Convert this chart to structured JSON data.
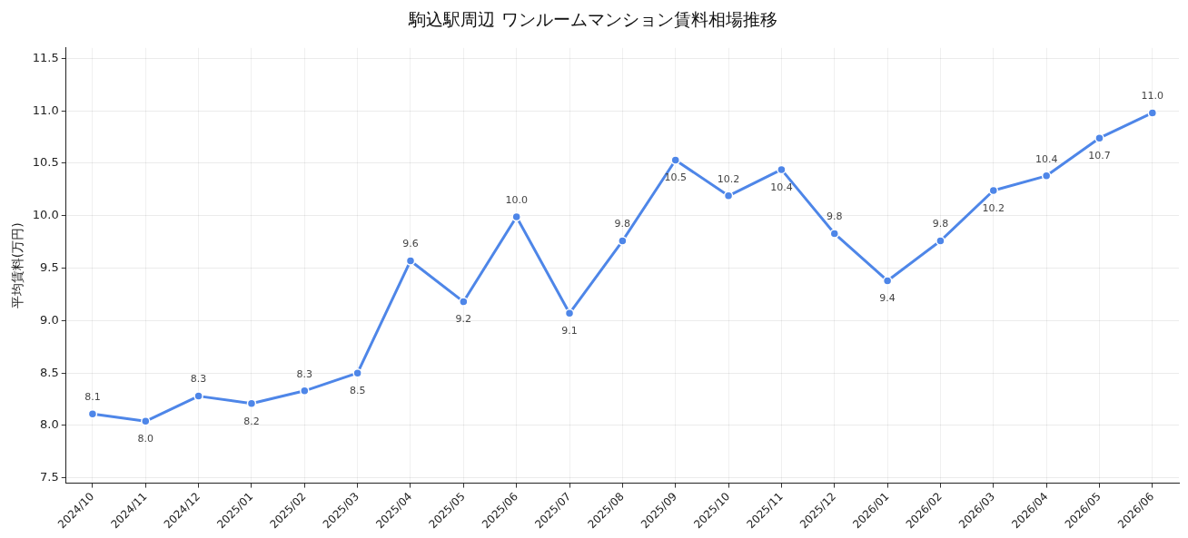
{
  "chart_data": {
    "type": "line",
    "title": "駒込駅周辺 ワンルームマンション賃料相場推移",
    "ylabel": "平均賃料(万円)",
    "categories": [
      "2024/10",
      "2024/11",
      "2024/12",
      "2025/01",
      "2025/02",
      "2025/03",
      "2025/04",
      "2025/05",
      "2025/06",
      "2025/07",
      "2025/08",
      "2025/09",
      "2025/10",
      "2025/11",
      "2025/12",
      "2026/01",
      "2026/02",
      "2026/03",
      "2026/04",
      "2026/05",
      "2026/06"
    ],
    "series": [
      {
        "color": "#4e86e8",
        "values": [
          8.11,
          8.04,
          8.28,
          8.21,
          8.33,
          8.5,
          9.57,
          9.18,
          9.99,
          9.07,
          9.76,
          10.53,
          10.19,
          10.44,
          9.83,
          9.38,
          9.76,
          10.24,
          10.38,
          10.74,
          10.98
        ],
        "value_labels": [
          "8.1",
          "8.0",
          "8.3",
          "8.2",
          "8.3",
          "8.5",
          "9.6",
          "9.2",
          "10.0",
          "9.1",
          "9.8",
          "10.5",
          "10.2",
          "10.4",
          "9.8",
          "9.4",
          "9.8",
          "10.2",
          "10.4",
          "10.7",
          "11.0"
        ]
      }
    ],
    "ylim": [
      7.45,
      11.6
    ],
    "yticks": [
      {
        "value": 7.5,
        "label": "7.5"
      },
      {
        "value": 8,
        "label": "8.0"
      },
      {
        "value": 8.5,
        "label": "8.5"
      },
      {
        "value": 9,
        "label": "9.0"
      },
      {
        "value": 9.5,
        "label": "9.5"
      },
      {
        "value": 10,
        "label": "10.0"
      },
      {
        "value": 10.5,
        "label": "10.5"
      },
      {
        "value": 11,
        "label": "11.0"
      },
      {
        "value": 11.5,
        "label": "11.5"
      }
    ],
    "grid": true,
    "legend": false,
    "marker": "circle",
    "line_style": "solid"
  }
}
